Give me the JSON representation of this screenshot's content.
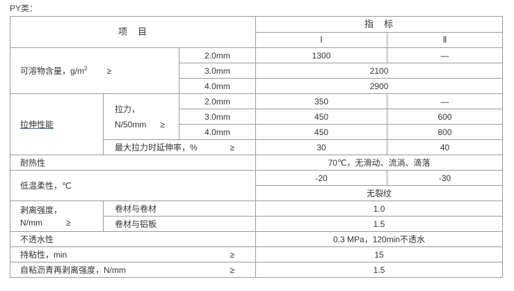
{
  "caption": "PY类：",
  "header": {
    "item": "项　目",
    "index": "指　标",
    "grade1": "Ⅰ",
    "grade2": "Ⅱ"
  },
  "ge": "≥",
  "soluble": {
    "label": "可溶物含量，g/m",
    "sup": "2",
    "rows": [
      {
        "t": "2.0mm",
        "v1": "1300",
        "v2": "—"
      },
      {
        "t": "3.0mm",
        "v": "2100"
      },
      {
        "t": "4.0mm",
        "v": "2900"
      }
    ]
  },
  "tensile": {
    "label": "拉伸性能",
    "force_label_1": "拉力，",
    "force_label_2": "N/50mm",
    "rows": [
      {
        "t": "2.0mm",
        "v1": "350",
        "v2": "—"
      },
      {
        "t": "3.0mm",
        "v1": "450",
        "v2": "600"
      },
      {
        "t": "4.0mm",
        "v1": "450",
        "v2": "800"
      }
    ],
    "elong_label": "最大拉力时延伸率，%",
    "elong_v1": "30",
    "elong_v2": "40"
  },
  "heat": {
    "label": "耐热性",
    "v": "70℃，无滑动、流淌、滴落"
  },
  "cold": {
    "label": "低温柔性，℃",
    "v1": "-20",
    "v2": "-30",
    "v": "无裂纹"
  },
  "peel": {
    "label_1": "剥离强度，",
    "label_2": "N/mm",
    "r1": "卷材与卷材",
    "v1": "1.0",
    "r2": "卷材与铝板",
    "v2": "1.5"
  },
  "water": {
    "label": "不透水性",
    "v": "0.3 MPa，120min不透水"
  },
  "hold": {
    "label": "持粘性，min",
    "v": "15"
  },
  "repeel": {
    "label": "自粘沥青再剥离强度，N/mm",
    "v": "1.5"
  }
}
